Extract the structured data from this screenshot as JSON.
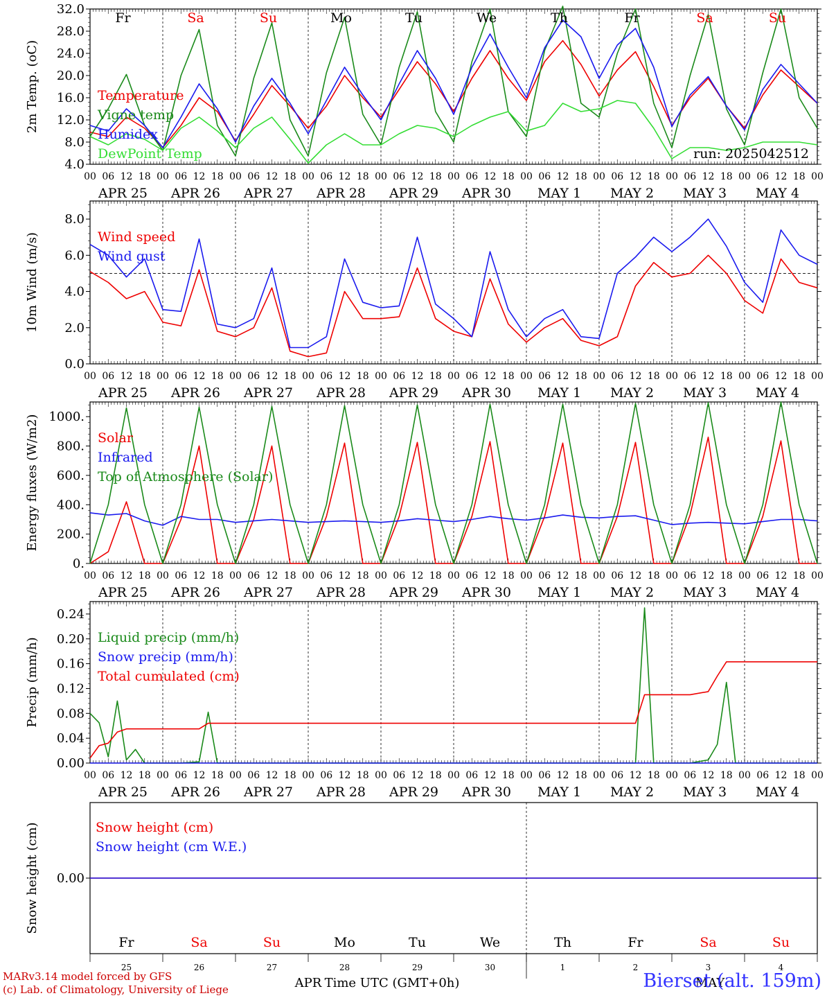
{
  "run_label": "run: 2025042512",
  "footer": {
    "model_line": "MARv3.14 model forced by GFS",
    "credit_line": "(c) Lab. of Climatology, University of Liege",
    "xlabel": "Time UTC (GMT+0h)",
    "month_left": "APR",
    "month_right": "MAY",
    "station": "Bierset (alt. 159m)"
  },
  "colors": {
    "red": "#ee0000",
    "green": "#1a8a1a",
    "blue": "#1a1aee",
    "lightgreen": "#33dd33",
    "weekend": "#ee0000",
    "weekday": "#000000"
  },
  "x_axis": {
    "hour_ticks": [
      "00",
      "06",
      "12",
      "18"
    ],
    "end_tick": "00",
    "dates": [
      "APR 25",
      "APR 26",
      "APR 27",
      "APR 28",
      "APR 29",
      "APR 30",
      "MAY  1",
      "MAY  2",
      "MAY  3",
      "MAY  4"
    ],
    "weekdays": [
      "Fr",
      "Sa",
      "Su",
      "Mo",
      "Tu",
      "We",
      "Th",
      "Fr",
      "Sa",
      "Su"
    ],
    "weekend": [
      false,
      true,
      true,
      false,
      false,
      false,
      false,
      false,
      true,
      true
    ],
    "day_numbers": [
      "25",
      "26",
      "27",
      "28",
      "29",
      "30",
      "1",
      "2",
      "3",
      "4"
    ]
  },
  "chart_data": [
    {
      "type": "line",
      "ylabel": "2m Temp. (oC)",
      "ylim": [
        4,
        32
      ],
      "yticks": [
        "4.0",
        "8.0",
        "12.0",
        "16.0",
        "20.0",
        "24.0",
        "28.0",
        "32.0"
      ],
      "x_hours": [
        0,
        6,
        12,
        18,
        24,
        30,
        36,
        42,
        48,
        54,
        60,
        66,
        72,
        78,
        84,
        90,
        96,
        102,
        108,
        114,
        120,
        126,
        132,
        138,
        144,
        150,
        156,
        162,
        168,
        174,
        180,
        186,
        192,
        198,
        204,
        210,
        216,
        222,
        228,
        234,
        240
      ],
      "series": [
        {
          "name": "Temperature",
          "color": "red",
          "values": [
            9.8,
            9.0,
            12.5,
            10.5,
            7.0,
            11.0,
            16.0,
            13.5,
            8.2,
            13.0,
            18.2,
            14.5,
            10.5,
            14.5,
            20.0,
            16.0,
            12.5,
            17.5,
            22.5,
            18.5,
            13.5,
            19.5,
            24.5,
            19.5,
            15.5,
            22.5,
            26.3,
            22.0,
            16.3,
            21.0,
            24.3,
            18.0,
            11.0,
            16.0,
            19.5,
            14.5,
            10.5,
            16.5,
            21.0,
            18.0,
            15.0
          ]
        },
        {
          "name": "Vigne temp",
          "color": "green",
          "values": [
            9.0,
            14.0,
            20.2,
            11.0,
            6.5,
            20.0,
            28.3,
            11.0,
            5.5,
            19.5,
            29.5,
            12.0,
            5.5,
            20.5,
            30.5,
            13.0,
            7.5,
            21.5,
            31.5,
            13.5,
            8.0,
            22.5,
            32.0,
            13.5,
            9.0,
            24.5,
            32.5,
            15.0,
            12.5,
            24.0,
            32.0,
            15.0,
            7.0,
            20.0,
            31.0,
            14.0,
            7.5,
            20.5,
            32.0,
            16.0,
            10.5
          ]
        },
        {
          "name": "Humidex",
          "color": "blue",
          "values": [
            11.0,
            10.0,
            14.0,
            11.0,
            7.0,
            12.5,
            18.5,
            14.0,
            8.0,
            14.5,
            19.5,
            15.0,
            9.5,
            15.5,
            21.5,
            16.5,
            12.0,
            18.5,
            24.5,
            19.5,
            13.0,
            21.5,
            27.5,
            21.5,
            16.0,
            25.0,
            30.0,
            27.0,
            19.5,
            25.5,
            28.5,
            21.5,
            10.8,
            16.5,
            19.8,
            14.5,
            10.2,
            17.5,
            22.0,
            18.5,
            15.0
          ]
        },
        {
          "name": "DewPoint Temp",
          "color": "lightgreen",
          "values": [
            9.0,
            7.5,
            9.5,
            8.5,
            6.5,
            10.5,
            12.5,
            10.0,
            7.0,
            10.5,
            12.5,
            8.5,
            4.2,
            7.5,
            9.5,
            7.5,
            7.5,
            9.5,
            11.0,
            10.5,
            9.0,
            11.0,
            12.5,
            13.5,
            10.0,
            11.0,
            15.0,
            13.5,
            14.0,
            15.5,
            15.0,
            10.5,
            5.0,
            7.0,
            7.0,
            6.5,
            7.0,
            8.0,
            8.0,
            8.0,
            7.5
          ]
        }
      ],
      "legend_position": "left"
    },
    {
      "type": "line",
      "ylabel": "10m Wind (m/s)",
      "ylim": [
        0,
        9
      ],
      "yticks": [
        "0.0",
        "2.0",
        "4.0",
        "6.0",
        "8.0"
      ],
      "reference_line": 5,
      "x_hours": [
        0,
        6,
        12,
        18,
        24,
        30,
        36,
        42,
        48,
        54,
        60,
        66,
        72,
        78,
        84,
        90,
        96,
        102,
        108,
        114,
        120,
        126,
        132,
        138,
        144,
        150,
        156,
        162,
        168,
        174,
        180,
        186,
        192,
        198,
        204,
        210,
        216,
        222,
        228,
        234,
        240
      ],
      "series": [
        {
          "name": "Wind speed",
          "color": "red",
          "values": [
            5.1,
            4.5,
            3.6,
            4.0,
            2.3,
            2.1,
            5.2,
            1.8,
            1.5,
            2.0,
            4.2,
            0.7,
            0.4,
            0.6,
            4.0,
            2.5,
            2.5,
            2.6,
            5.3,
            2.5,
            1.8,
            1.5,
            4.7,
            2.2,
            1.2,
            2.0,
            2.5,
            1.3,
            1.0,
            1.5,
            4.3,
            5.6,
            4.8,
            5.0,
            6.0,
            5.0,
            3.5,
            2.8,
            5.8,
            4.5,
            4.2
          ]
        },
        {
          "name": "Wind gust",
          "color": "blue",
          "values": [
            6.6,
            6.0,
            4.8,
            5.8,
            3.0,
            2.9,
            6.9,
            2.2,
            2.0,
            2.5,
            5.3,
            0.9,
            0.9,
            1.5,
            5.8,
            3.4,
            3.1,
            3.2,
            7.0,
            3.3,
            2.5,
            1.5,
            6.2,
            3.0,
            1.5,
            2.5,
            3.0,
            1.5,
            1.4,
            5.0,
            5.9,
            7.0,
            6.2,
            7.0,
            8.0,
            6.5,
            4.5,
            3.4,
            7.4,
            6.0,
            5.5
          ]
        }
      ],
      "legend_position": "left"
    },
    {
      "type": "line",
      "ylabel": "Energy fluxes (W/m2)",
      "ylim": [
        0,
        1100
      ],
      "yticks": [
        "0.",
        "200.",
        "400.",
        "600.",
        "800.",
        "1000."
      ],
      "x_hours": [
        0,
        6,
        12,
        18,
        24,
        30,
        36,
        42,
        48,
        54,
        60,
        66,
        72,
        78,
        84,
        90,
        96,
        102,
        108,
        114,
        120,
        126,
        132,
        138,
        144,
        150,
        156,
        162,
        168,
        174,
        180,
        186,
        192,
        198,
        204,
        210,
        216,
        222,
        228,
        234,
        240
      ],
      "series": [
        {
          "name": "Solar",
          "color": "red",
          "values": [
            0,
            80,
            420,
            0,
            0,
            300,
            800,
            0,
            0,
            300,
            800,
            0,
            0,
            320,
            820,
            0,
            0,
            320,
            825,
            0,
            0,
            320,
            830,
            0,
            0,
            320,
            820,
            0,
            0,
            320,
            825,
            0,
            0,
            330,
            860,
            0,
            0,
            320,
            835,
            0,
            0
          ]
        },
        {
          "name": "Infrared",
          "color": "blue",
          "values": [
            345,
            330,
            340,
            290,
            260,
            320,
            300,
            300,
            280,
            290,
            300,
            290,
            280,
            285,
            290,
            285,
            280,
            290,
            305,
            295,
            285,
            300,
            320,
            305,
            295,
            310,
            330,
            315,
            310,
            320,
            325,
            295,
            265,
            275,
            280,
            275,
            270,
            285,
            300,
            300,
            290
          ]
        },
        {
          "name": "Top of Atmosphere (Solar)",
          "color": "green",
          "values": [
            0,
            400,
            1060,
            400,
            0,
            400,
            1065,
            400,
            0,
            400,
            1070,
            400,
            0,
            400,
            1075,
            400,
            0,
            400,
            1080,
            400,
            0,
            400,
            1085,
            400,
            0,
            400,
            1085,
            400,
            0,
            400,
            1090,
            400,
            0,
            400,
            1095,
            400,
            0,
            400,
            1100,
            400,
            0
          ]
        }
      ],
      "legend_position": "left"
    },
    {
      "type": "line",
      "ylabel": "Precip (mm/h)",
      "ylim": [
        0,
        0.26
      ],
      "yticks": [
        "0.00",
        "0.04",
        "0.08",
        "0.12",
        "0.16",
        "0.20",
        "0.24"
      ],
      "x_hours": [
        0,
        3,
        6,
        9,
        12,
        15,
        18,
        21,
        24,
        30,
        36,
        39,
        42,
        48,
        96,
        144,
        180,
        183,
        186,
        189,
        192,
        198,
        204,
        207,
        210,
        213,
        216,
        240
      ],
      "series": [
        {
          "name": "Liquid precip (mm/h)",
          "color": "green",
          "values": [
            0.08,
            0.065,
            0.01,
            0.1,
            0.005,
            0.022,
            0,
            0,
            0,
            0,
            0.002,
            0.082,
            0,
            0,
            0,
            0,
            0,
            0.25,
            0,
            0,
            0,
            0,
            0.005,
            0.03,
            0.13,
            0,
            0,
            0
          ]
        },
        {
          "name": "Snow precip (mm/h)",
          "color": "blue",
          "values": [
            0,
            0,
            0,
            0,
            0,
            0,
            0,
            0,
            0,
            0,
            0,
            0,
            0,
            0,
            0,
            0,
            0,
            0,
            0,
            0,
            0,
            0,
            0,
            0,
            0,
            0,
            0,
            0
          ]
        },
        {
          "name": "Total cumulated (cm)",
          "color": "red",
          "values": [
            0.008,
            0.028,
            0.032,
            0.05,
            0.055,
            0.055,
            0.055,
            0.055,
            0.055,
            0.055,
            0.055,
            0.064,
            0.064,
            0.064,
            0.064,
            0.064,
            0.064,
            0.11,
            0.11,
            0.11,
            0.11,
            0.11,
            0.115,
            0.14,
            0.163,
            0.163,
            0.163,
            0.163
          ]
        }
      ],
      "legend_position": "left"
    },
    {
      "type": "line",
      "ylabel": "Snow height (cm)",
      "ylim": [
        -1,
        1
      ],
      "yticks": [
        "0.00"
      ],
      "x_hours": [
        0,
        240
      ],
      "series": [
        {
          "name": "Snow height (cm)",
          "color": "red",
          "values": [
            0,
            0
          ]
        },
        {
          "name": "Snow height (cm W.E.)",
          "color": "blue",
          "values": [
            0,
            0
          ]
        }
      ],
      "legend_position": "left"
    }
  ]
}
